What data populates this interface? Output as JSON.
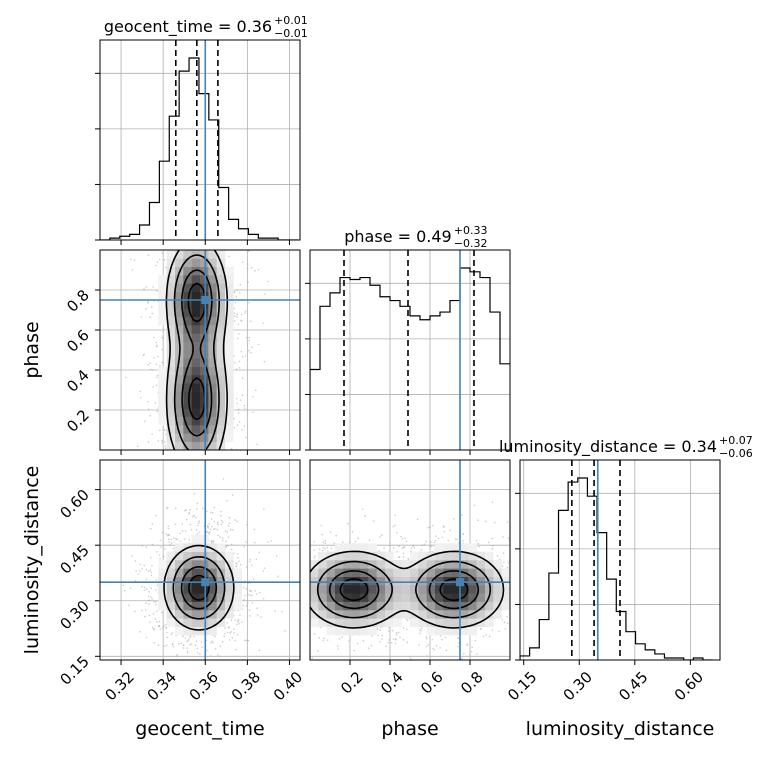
{
  "chart_data": {
    "type": "corner",
    "parameters": [
      "geocent_time",
      "phase",
      "luminosity_distance"
    ],
    "truth": {
      "geocent_time": 0.36,
      "phase": 0.75,
      "luminosity_distance": 0.35
    },
    "ranges": {
      "geocent_time": [
        0.31,
        0.405
      ],
      "phase": [
        0.0,
        1.0
      ],
      "luminosity_distance": [
        0.14,
        0.68
      ]
    },
    "ticks": {
      "geocent_time": [
        0.32,
        0.34,
        0.36,
        0.38,
        0.4
      ],
      "phase": [
        0.2,
        0.4,
        0.6,
        0.8
      ],
      "luminosity_distance": [
        0.15,
        0.3,
        0.45,
        0.6
      ]
    },
    "tick_labels": {
      "geocent_time": [
        "0.32",
        "0.34",
        "0.36",
        "0.38",
        "0.40"
      ],
      "phase": [
        "0.2",
        "0.4",
        "0.6",
        "0.8"
      ],
      "luminosity_distance": [
        "0.15",
        "0.30",
        "0.45",
        "0.60"
      ]
    },
    "titles": [
      {
        "param": "geocent_time",
        "text": "geocent_time = 0.36",
        "plus": "+0.01",
        "minus": "−0.01"
      },
      {
        "param": "phase",
        "text": "phase = 0.49",
        "plus": "+0.33",
        "minus": "−0.32"
      },
      {
        "param": "luminosity_distance",
        "text": "luminosity_distance = 0.34",
        "plus": "+0.07",
        "minus": "−0.06"
      }
    ],
    "quantiles": {
      "geocent_time": [
        0.346,
        0.356,
        0.366
      ],
      "phase": [
        0.17,
        0.49,
        0.82
      ],
      "luminosity_distance": [
        0.28,
        0.34,
        0.41
      ]
    },
    "histograms": {
      "geocent_time": {
        "edges_start": 0.31,
        "bin_width": 0.0047,
        "counts": [
          0,
          1,
          2,
          3,
          8,
          20,
          42,
          66,
          90,
          97,
          78,
          64,
          28,
          11,
          6,
          3,
          1,
          1,
          0,
          0
        ]
      },
      "phase": {
        "edges_start": 0.0,
        "bin_width": 0.05,
        "counts": [
          42,
          75,
          82,
          90,
          89,
          90,
          86,
          80,
          78,
          75,
          70,
          68,
          70,
          72,
          78,
          95,
          93,
          90,
          72,
          45
        ]
      },
      "luminosity_distance": {
        "edges_start": 0.14,
        "bin_width": 0.026,
        "counts": [
          2,
          6,
          20,
          43,
          74,
          88,
          90,
          81,
          63,
          40,
          24,
          14,
          8,
          5,
          3,
          1,
          1,
          0,
          1,
          0
        ]
      }
    },
    "density_2d": [
      {
        "x": "geocent_time",
        "y": "phase",
        "blobs": [
          {
            "cx": 0.356,
            "cy": 0.25,
            "sx": 0.007,
            "sy": 0.18,
            "w": 1.0
          },
          {
            "cx": 0.356,
            "cy": 0.75,
            "sx": 0.007,
            "sy": 0.15,
            "w": 1.0
          }
        ]
      },
      {
        "x": "geocent_time",
        "y": "luminosity_distance",
        "blobs": [
          {
            "cx": 0.357,
            "cy": 0.335,
            "sx": 0.008,
            "sy": 0.055,
            "w": 1.0
          }
        ]
      },
      {
        "x": "phase",
        "y": "luminosity_distance",
        "blobs": [
          {
            "cx": 0.22,
            "cy": 0.33,
            "sx": 0.12,
            "sy": 0.05,
            "w": 1.0
          },
          {
            "cx": 0.72,
            "cy": 0.33,
            "sx": 0.12,
            "sy": 0.05,
            "w": 1.0
          }
        ]
      }
    ],
    "colors": {
      "truth": "#4682b4",
      "hist": "#000000",
      "quantile": "#000000",
      "grid": "#b0b0b0"
    },
    "grid": true
  }
}
